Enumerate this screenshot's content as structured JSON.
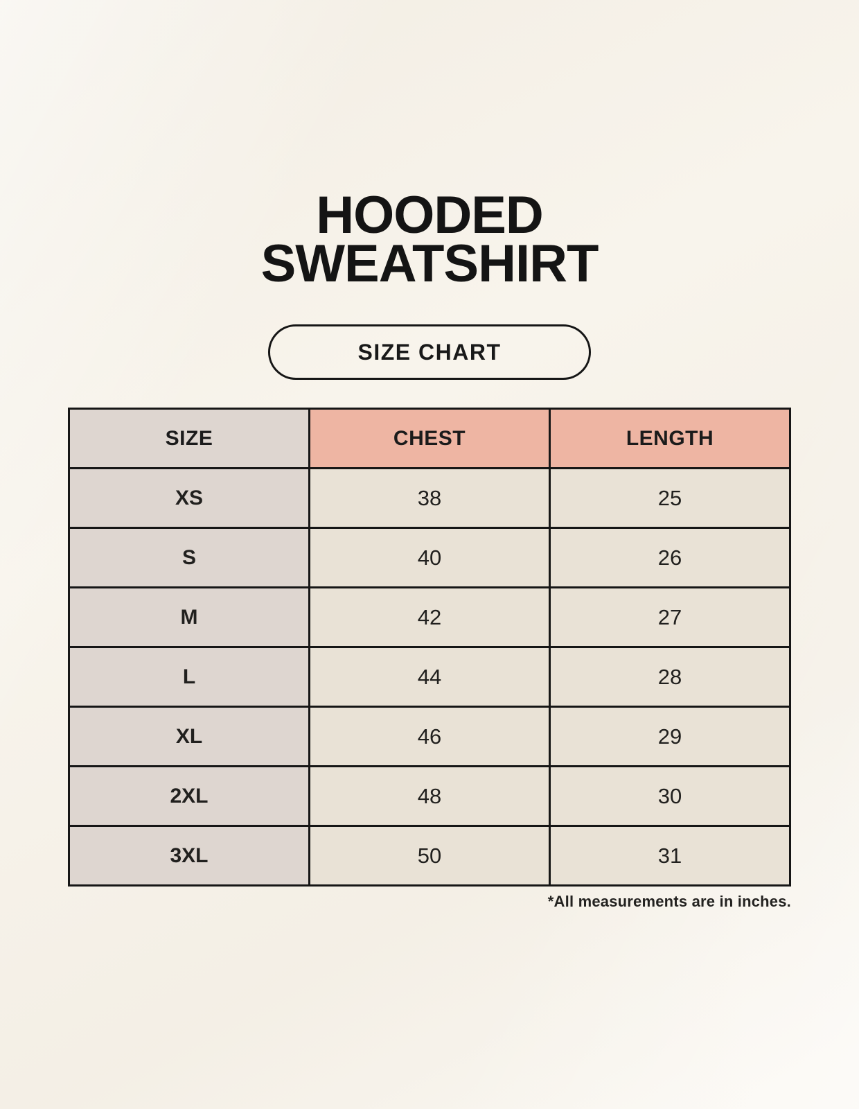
{
  "page": {
    "title": "HOODED\nSWEATSHIRT",
    "badge_label": "SIZE CHART",
    "footnote": "*All measurements are in inches."
  },
  "chart_data": {
    "type": "table",
    "title": "HOODED SWEATSHIRT SIZE CHART",
    "columns": [
      "SIZE",
      "CHEST",
      "LENGTH"
    ],
    "rows": [
      [
        "XS",
        "38",
        "25"
      ],
      [
        "S",
        "40",
        "26"
      ],
      [
        "M",
        "42",
        "27"
      ],
      [
        "L",
        "44",
        "28"
      ],
      [
        "XL",
        "46",
        "29"
      ],
      [
        "2XL",
        "48",
        "30"
      ],
      [
        "3XL",
        "50",
        "31"
      ]
    ],
    "units": "inches"
  },
  "colors": {
    "background": "#f8f4ec",
    "header_accent": "#eeb5a3",
    "cell_gray": "#ded6d0",
    "cell_cream": "#e9e2d6",
    "border": "#161616",
    "ink": "#1a1a1a"
  }
}
